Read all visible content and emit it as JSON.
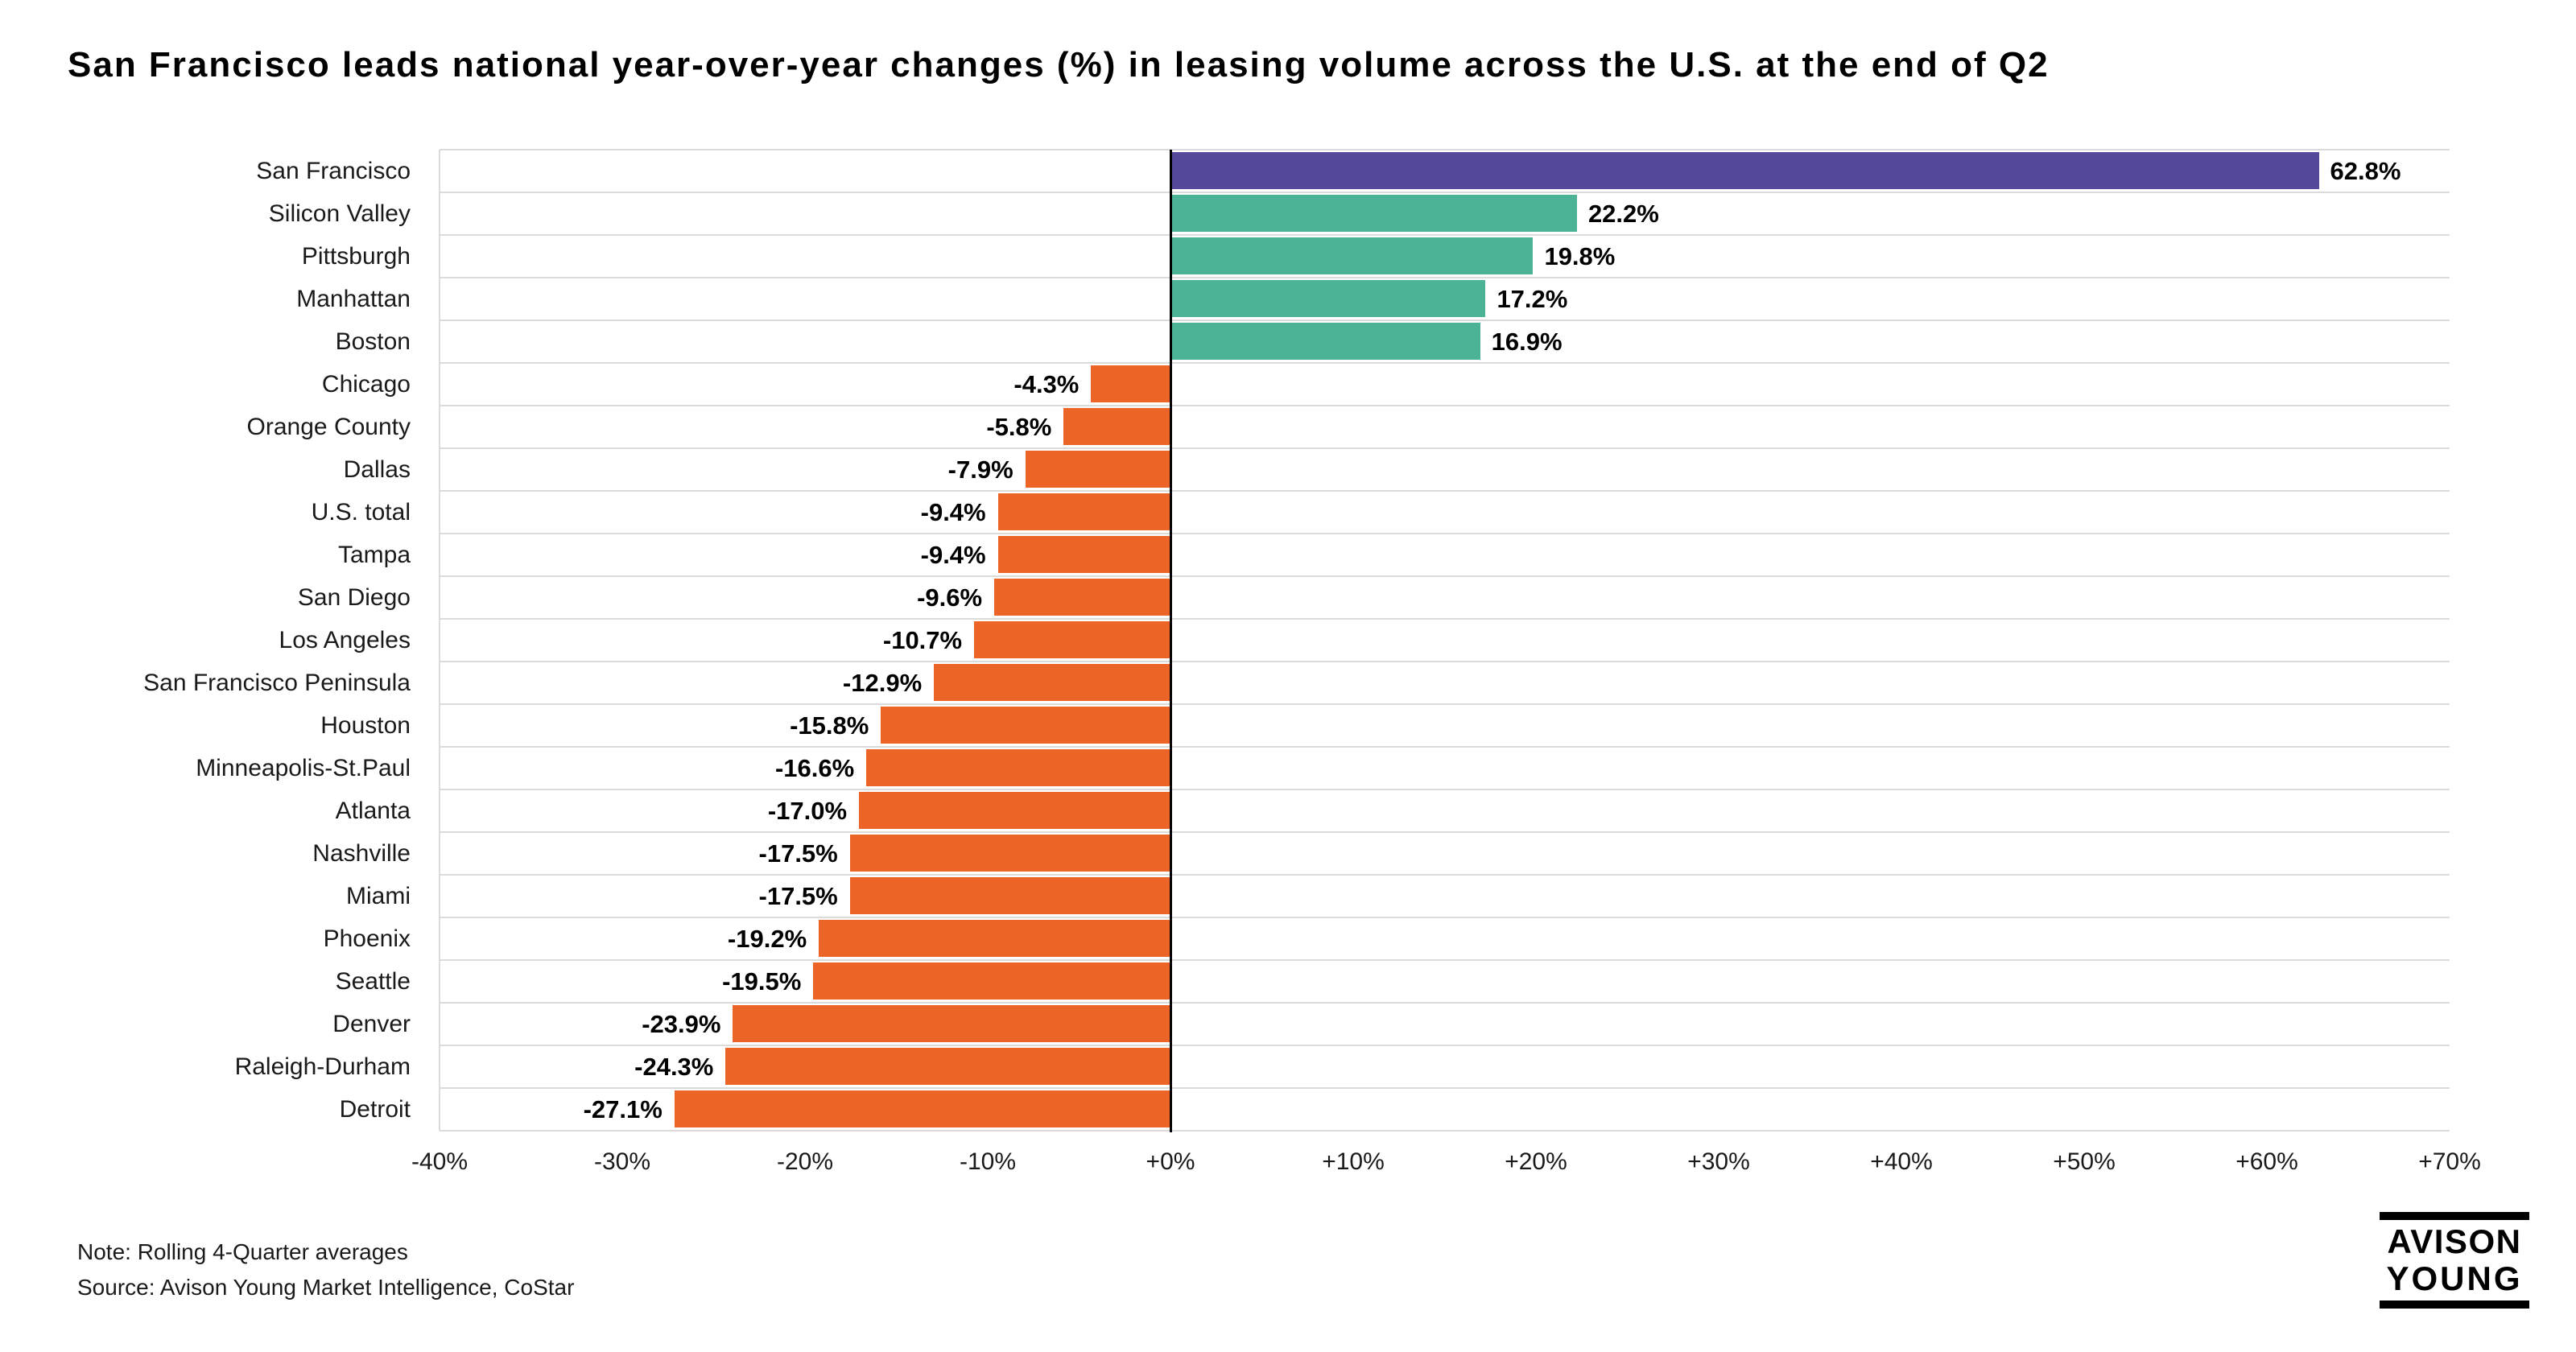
{
  "title": "San Francisco leads national year-over-year changes (%) in leasing volume across the U.S. at the end of Q2",
  "footnote": {
    "note": "Note: Rolling 4-Quarter averages",
    "source": "Source: Avison Young Market Intelligence, CoStar"
  },
  "logo": {
    "line1": "AVISON",
    "line2": "YOUNG"
  },
  "chart_data": {
    "type": "bar",
    "orientation": "horizontal",
    "title": "San Francisco leads national year-over-year changes (%) in leasing volume across the U.S. at the end of Q2",
    "xlabel": "",
    "ylabel": "",
    "xlim": [
      -40,
      70
    ],
    "x_tick_labels": [
      "-40%",
      "-30%",
      "-20%",
      "-10%",
      "+0%",
      "+10%",
      "+20%",
      "+30%",
      "+40%",
      "+50%",
      "+60%",
      "+70%"
    ],
    "grid": {
      "horizontal_row_separators": true,
      "vertical_gridlines": false,
      "zero_line": true
    },
    "legend": "none",
    "colors": {
      "highlight": "#54499B",
      "positive": "#4DB396",
      "negative": "#EC6526",
      "separator": "#DBDBDB",
      "zero_line": "#000000"
    },
    "series": [
      {
        "category": "San Francisco",
        "value": 62.8,
        "label": "62.8%",
        "color": "#54499B"
      },
      {
        "category": "Silicon Valley",
        "value": 22.2,
        "label": "22.2%",
        "color": "#4DB396"
      },
      {
        "category": "Pittsburgh",
        "value": 19.8,
        "label": "19.8%",
        "color": "#4DB396"
      },
      {
        "category": "Manhattan",
        "value": 17.2,
        "label": "17.2%",
        "color": "#4DB396"
      },
      {
        "category": "Boston",
        "value": 16.9,
        "label": "16.9%",
        "color": "#4DB396"
      },
      {
        "category": "Chicago",
        "value": -4.3,
        "label": "-4.3%",
        "color": "#EC6526"
      },
      {
        "category": "Orange County",
        "value": -5.8,
        "label": "-5.8%",
        "color": "#EC6526"
      },
      {
        "category": "Dallas",
        "value": -7.9,
        "label": "-7.9%",
        "color": "#EC6526"
      },
      {
        "category": "U.S. total",
        "value": -9.4,
        "label": "-9.4%",
        "color": "#EC6526"
      },
      {
        "category": "Tampa",
        "value": -9.4,
        "label": "-9.4%",
        "color": "#EC6526"
      },
      {
        "category": "San Diego",
        "value": -9.6,
        "label": "-9.6%",
        "color": "#EC6526"
      },
      {
        "category": "Los Angeles",
        "value": -10.7,
        "label": "-10.7%",
        "color": "#EC6526"
      },
      {
        "category": "San Francisco Peninsula",
        "value": -12.9,
        "label": "-12.9%",
        "color": "#EC6526"
      },
      {
        "category": "Houston",
        "value": -15.8,
        "label": "-15.8%",
        "color": "#EC6526"
      },
      {
        "category": "Minneapolis-St.Paul",
        "value": -16.6,
        "label": "-16.6%",
        "color": "#EC6526"
      },
      {
        "category": "Atlanta",
        "value": -17.0,
        "label": "-17.0%",
        "color": "#EC6526"
      },
      {
        "category": "Nashville",
        "value": -17.5,
        "label": "-17.5%",
        "color": "#EC6526"
      },
      {
        "category": "Miami",
        "value": -17.5,
        "label": "-17.5%",
        "color": "#EC6526"
      },
      {
        "category": "Phoenix",
        "value": -19.2,
        "label": "-19.2%",
        "color": "#EC6526"
      },
      {
        "category": "Seattle",
        "value": -19.5,
        "label": "-19.5%",
        "color": "#EC6526"
      },
      {
        "category": "Denver",
        "value": -23.9,
        "label": "-23.9%",
        "color": "#EC6526"
      },
      {
        "category": "Raleigh-Durham",
        "value": -24.3,
        "label": "-24.3%",
        "color": "#EC6526"
      },
      {
        "category": "Detroit",
        "value": -27.1,
        "label": "-27.1%",
        "color": "#EC6526"
      }
    ]
  }
}
